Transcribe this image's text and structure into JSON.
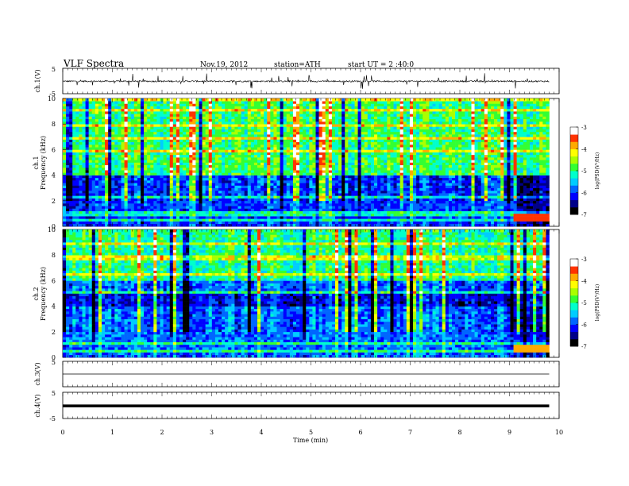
{
  "header": {
    "title": "VLF Spectra",
    "date": "Nov.19, 2012",
    "station": "station=ATH",
    "start": "start UT = 2 :40:0"
  },
  "chart_data": [
    {
      "type": "line",
      "panel": "ch1-waveform",
      "ylabel": "ch.1(V)",
      "ylim": [
        -5,
        5
      ],
      "y_ticks": [
        "5",
        "-5"
      ],
      "xlim": [
        0,
        9.8
      ],
      "baseline": -0.1,
      "noise_amplitude": 0.6,
      "spike_amplitude": 3,
      "color": "#000000"
    },
    {
      "type": "heatmap",
      "panel": "ch1-spectrogram",
      "ylabel": "ch.1\nFrequency (kHz)",
      "ylim": [
        0,
        10
      ],
      "y_ticks": [
        "0",
        "2",
        "4",
        "6",
        "8",
        "10"
      ],
      "xlim": [
        0,
        9.8
      ],
      "colorbar": {
        "label": "log(PSD(V²/Hz)",
        "range": [
          -7,
          -3
        ],
        "ticks": [
          "-3",
          "-4",
          "-5",
          "-6",
          "-7"
        ]
      },
      "description": "power spectral density vs time; strong broadband spikes; weak below 4 kHz; intense line near 0.5 kHz after 9 min",
      "late_change_min": 9.1
    },
    {
      "type": "heatmap",
      "panel": "ch2-spectrogram",
      "ylabel": "ch.2\nFrequency (kHz)",
      "ylim": [
        0,
        10
      ],
      "y_ticks": [
        "0",
        "2",
        "4",
        "6",
        "8",
        "10"
      ],
      "xlim": [
        0,
        9.8
      ],
      "colorbar": {
        "label": "log(PSD(V²/Hz)",
        "range": [
          -7,
          -3
        ],
        "ticks": [
          "-3",
          "-4",
          "-5",
          "-6",
          "-7"
        ]
      },
      "late_change_min": 9.1
    },
    {
      "type": "line",
      "panel": "ch3-waveform",
      "ylabel": "ch.3(V)",
      "ylim": [
        -5,
        5
      ],
      "y_ticks": [
        "5",
        "-5"
      ],
      "baseline": 0,
      "color": "#000000"
    },
    {
      "type": "line",
      "panel": "ch4-waveform",
      "ylabel": "ch.4(V)",
      "ylim": [
        -5,
        5
      ],
      "y_ticks": [
        "5",
        "-5"
      ],
      "baseline": -0.2,
      "thick": true,
      "color": "#000000"
    }
  ],
  "xaxis": {
    "label": "Time (min)",
    "range": [
      0,
      10
    ],
    "ticks": [
      "0",
      "1",
      "2",
      "3",
      "4",
      "5",
      "6",
      "7",
      "8",
      "9",
      "10"
    ]
  },
  "colormap": [
    "#000000",
    "#000088",
    "#0000ff",
    "#0066ff",
    "#00ccff",
    "#00ffcc",
    "#33ff33",
    "#aaff00",
    "#ffff00",
    "#ffaa00",
    "#ff3300",
    "#ffffff"
  ]
}
